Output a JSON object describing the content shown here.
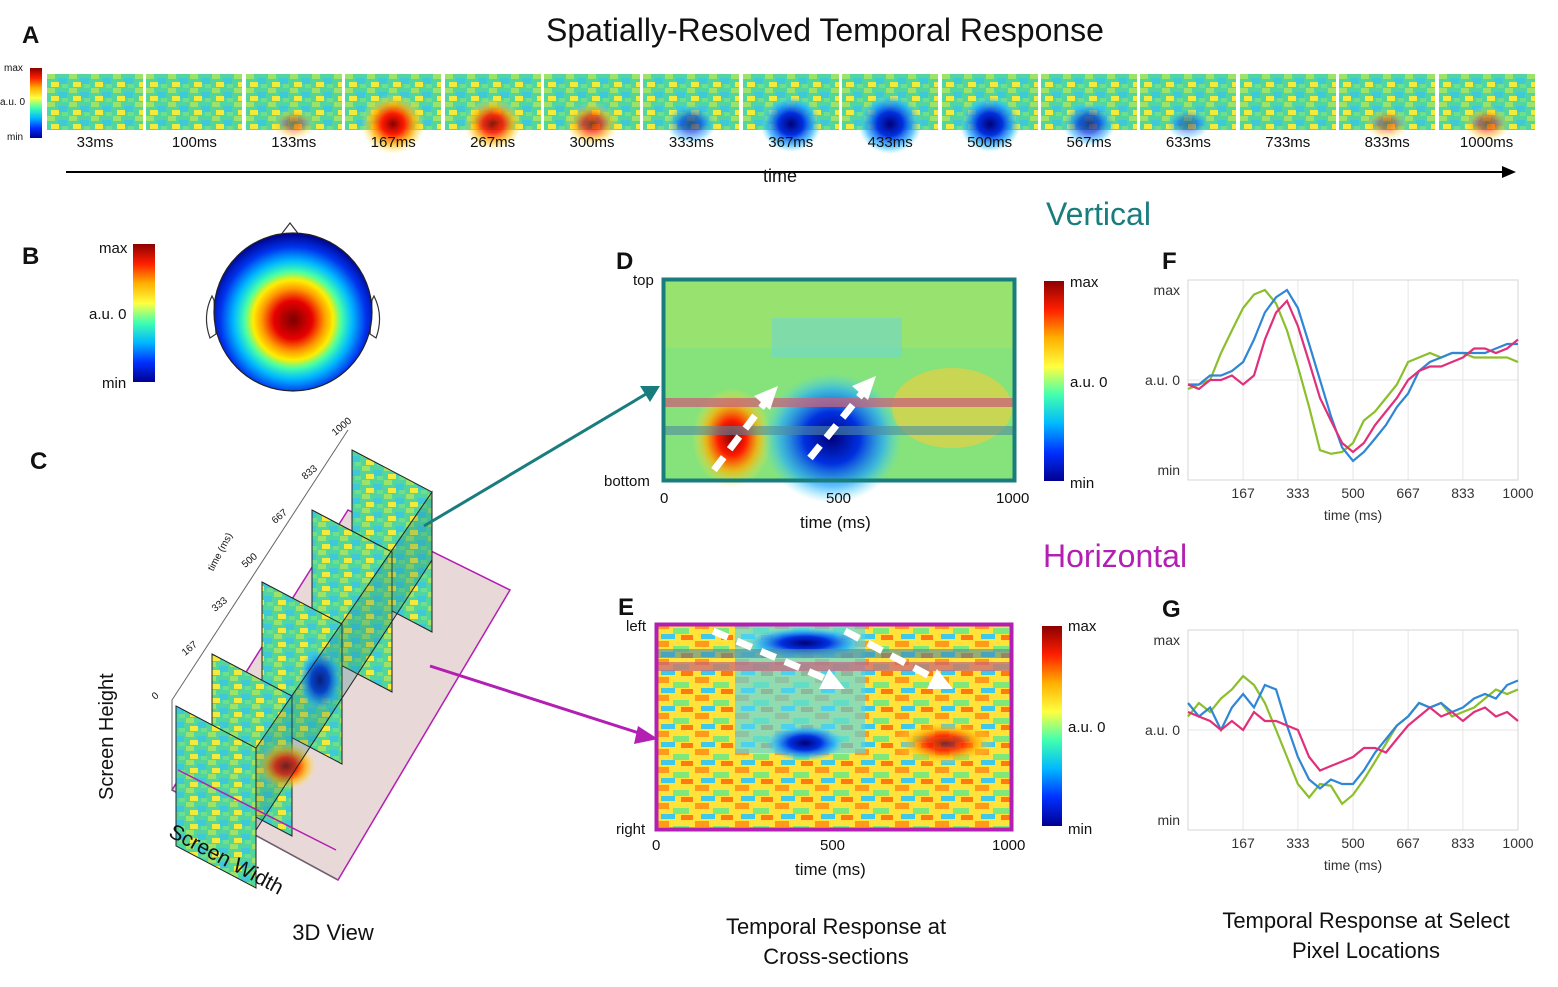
{
  "title": "Spatially-Resolved Temporal Response",
  "panels": {
    "a": "A",
    "b": "B",
    "c": "C",
    "d": "D",
    "e": "E",
    "f": "F",
    "g": "G"
  },
  "colorbar_labels": {
    "max": "max",
    "zero": "a.u. 0",
    "min": "min"
  },
  "strip": {
    "frames": [
      "33ms",
      "100ms",
      "133ms",
      "167ms",
      "267ms",
      "300ms",
      "333ms",
      "367ms",
      "433ms",
      "500ms",
      "567ms",
      "633ms",
      "733ms",
      "833ms",
      "1000ms"
    ],
    "intensity": [
      0.1,
      0.0,
      0.3,
      1.0,
      0.8,
      0.6,
      -0.5,
      -0.9,
      -1.0,
      -0.9,
      -0.6,
      -0.3,
      0.1,
      0.3,
      0.4
    ],
    "time_label": "time"
  },
  "view3d": {
    "axis_label_height": "Screen Height",
    "axis_label_width": "Screen Width",
    "time_axis_label": "time (ms)",
    "time_ticks": [
      "0",
      "167",
      "333",
      "500",
      "667",
      "833",
      "1000"
    ],
    "caption": "3D View"
  },
  "sections": {
    "vertical": "Vertical",
    "horizontal": "Horizontal"
  },
  "panel_d": {
    "ylabel_top": "top",
    "ylabel_bottom": "bottom",
    "xticks": [
      "0",
      "500",
      "1000"
    ],
    "xlabel": "time (ms)"
  },
  "panel_e": {
    "ylabel_top": "left",
    "ylabel_bottom": "right",
    "xticks": [
      "0",
      "500",
      "1000"
    ],
    "xlabel": "time (ms)"
  },
  "middle_caption_line1": "Temporal Response at",
  "middle_caption_line2": "Cross-sections",
  "right_caption_line1": "Temporal Response at Select",
  "right_caption_line2": "Pixel Locations",
  "colors": {
    "vertical": "#1a7d7d",
    "horizontal": "#b21fb2",
    "green": "#8bbf2b",
    "blue": "#2f86d6",
    "magenta": "#e0307a"
  },
  "chart_data": [
    {
      "type": "line",
      "panel": "F",
      "xlabel": "time (ms)",
      "xticks": [
        "167",
        "333",
        "500",
        "667",
        "833",
        "1000"
      ],
      "yticks": [
        "max",
        "a.u. 0",
        "min"
      ],
      "ylim": [
        -1,
        1
      ],
      "x": [
        0,
        33,
        67,
        100,
        133,
        167,
        200,
        233,
        267,
        300,
        333,
        367,
        400,
        433,
        467,
        500,
        533,
        567,
        600,
        633,
        667,
        700,
        733,
        767,
        800,
        833,
        867,
        900,
        933,
        967,
        1000
      ],
      "series": [
        {
          "color": "green",
          "values": [
            -0.1,
            -0.05,
            0.0,
            0.3,
            0.55,
            0.8,
            0.95,
            1.0,
            0.85,
            0.55,
            0.15,
            -0.3,
            -0.78,
            -0.82,
            -0.8,
            -0.7,
            -0.45,
            -0.35,
            -0.2,
            -0.05,
            0.2,
            0.25,
            0.3,
            0.25,
            0.3,
            0.3,
            0.25,
            0.25,
            0.25,
            0.25,
            0.2
          ]
        },
        {
          "color": "blue",
          "values": [
            -0.05,
            -0.05,
            0.05,
            0.05,
            0.1,
            0.2,
            0.45,
            0.75,
            0.92,
            1.0,
            0.8,
            0.4,
            0.0,
            -0.4,
            -0.75,
            -0.9,
            -0.8,
            -0.65,
            -0.5,
            -0.3,
            -0.15,
            0.1,
            0.2,
            0.25,
            0.3,
            0.3,
            0.3,
            0.3,
            0.35,
            0.4,
            0.4
          ]
        },
        {
          "color": "magenta",
          "values": [
            -0.05,
            -0.1,
            0.0,
            0.0,
            0.05,
            -0.05,
            0.05,
            0.45,
            0.75,
            0.88,
            0.6,
            0.2,
            -0.2,
            -0.45,
            -0.7,
            -0.8,
            -0.7,
            -0.5,
            -0.35,
            -0.2,
            0.0,
            0.1,
            0.15,
            0.15,
            0.2,
            0.25,
            0.35,
            0.35,
            0.3,
            0.35,
            0.45
          ]
        }
      ]
    },
    {
      "type": "line",
      "panel": "G",
      "xlabel": "time (ms)",
      "xticks": [
        "167",
        "333",
        "500",
        "667",
        "833",
        "1000"
      ],
      "yticks": [
        "max",
        "a.u. 0",
        "min"
      ],
      "ylim": [
        -1,
        1
      ],
      "x": [
        0,
        33,
        67,
        100,
        133,
        167,
        200,
        233,
        267,
        300,
        333,
        367,
        400,
        433,
        467,
        500,
        533,
        567,
        600,
        633,
        667,
        700,
        733,
        767,
        800,
        833,
        867,
        900,
        933,
        967,
        1000
      ],
      "series": [
        {
          "color": "green",
          "values": [
            0.15,
            0.3,
            0.2,
            0.35,
            0.45,
            0.6,
            0.5,
            0.3,
            0.0,
            -0.3,
            -0.6,
            -0.75,
            -0.6,
            -0.62,
            -0.82,
            -0.72,
            -0.55,
            -0.35,
            -0.15,
            0.05,
            0.15,
            0.3,
            0.25,
            0.3,
            0.15,
            0.2,
            0.25,
            0.35,
            0.45,
            0.4,
            0.45
          ]
        },
        {
          "color": "blue",
          "values": [
            0.3,
            0.15,
            0.25,
            0.0,
            0.25,
            0.4,
            0.25,
            0.5,
            0.45,
            0.05,
            -0.3,
            -0.55,
            -0.65,
            -0.55,
            -0.6,
            -0.6,
            -0.45,
            -0.25,
            -0.1,
            0.05,
            0.15,
            0.3,
            0.25,
            0.3,
            0.2,
            0.25,
            0.35,
            0.4,
            0.35,
            0.5,
            0.55
          ]
        },
        {
          "color": "magenta",
          "values": [
            0.2,
            0.15,
            0.1,
            0.0,
            0.1,
            0.0,
            0.2,
            0.1,
            0.1,
            0.05,
            0.0,
            -0.3,
            -0.45,
            -0.4,
            -0.35,
            -0.3,
            -0.2,
            -0.2,
            -0.25,
            -0.1,
            0.05,
            0.15,
            0.25,
            0.15,
            0.2,
            0.1,
            0.2,
            0.25,
            0.15,
            0.2,
            0.1
          ]
        }
      ]
    }
  ]
}
